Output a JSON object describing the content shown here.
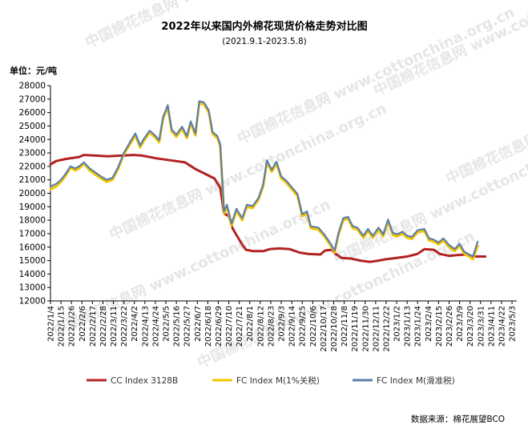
{
  "chart_data": {
    "type": "line",
    "title": "2022年以来国内外棉花现货价格走势对比图",
    "subtitle": "(2021.9.1-2023.5.8)",
    "unit_label": "单位：元/吨",
    "source": "数据来源：棉花展望BCO",
    "watermark": "中国棉花信息网 www.cottonchina.org.cn",
    "ylim": [
      12000,
      28000
    ],
    "ytick_step": 1000,
    "y_ticks": [
      "12000",
      "13000",
      "14000",
      "15000",
      "16000",
      "17000",
      "18000",
      "19000",
      "20000",
      "21000",
      "22000",
      "23000",
      "24000",
      "25000",
      "26000",
      "27000",
      "28000"
    ],
    "x_ticks": [
      "2022/1/4",
      "2022/1/15",
      "2022/1/26",
      "2022/2/6",
      "2022/2/17",
      "2022/2/28",
      "2022/3/11",
      "2022/3/22",
      "2022/4/2",
      "2022/4/13",
      "2022/4/24",
      "2022/5/5",
      "2022/5/16",
      "2022/5/27",
      "2022/6/7",
      "2022/6/18",
      "2022/6/29",
      "2022/7/10",
      "2022/7/21",
      "2022/8/1",
      "2022/8/12",
      "2022/8/23",
      "2022/9/3",
      "2022/9/14",
      "2022/9/25",
      "2022/10/6",
      "2022/10/17",
      "2022/10/28",
      "2022/11/8",
      "2022/11/19",
      "2022/11/30",
      "2022/12/11",
      "2022/12/22",
      "2023/1/2",
      "2023/1/13",
      "2023/1/24",
      "2023/2/4",
      "2023/2/15",
      "2023/2/26",
      "2023/3/9",
      "2023/3/20",
      "2023/3/31",
      "2023/4/11",
      "2023/4/22",
      "2023/5/3"
    ],
    "x_range": [
      "2022-01-04",
      "2023-05-08"
    ],
    "grid": false,
    "legend_position": "bottom",
    "series": [
      {
        "name": "CC Index 3128B",
        "color": "#b22222",
        "points": [
          [
            "2022-01-04",
            22150
          ],
          [
            "2022-01-10",
            22400
          ],
          [
            "2022-01-20",
            22550
          ],
          [
            "2022-01-30",
            22650
          ],
          [
            "2022-02-03",
            22700
          ],
          [
            "2022-02-08",
            22850
          ],
          [
            "2022-02-20",
            22800
          ],
          [
            "2022-03-05",
            22750
          ],
          [
            "2022-03-20",
            22800
          ],
          [
            "2022-04-01",
            22850
          ],
          [
            "2022-04-10",
            22800
          ],
          [
            "2022-04-25",
            22600
          ],
          [
            "2022-05-10",
            22450
          ],
          [
            "2022-05-25",
            22300
          ],
          [
            "2022-06-05",
            21800
          ],
          [
            "2022-06-15",
            21450
          ],
          [
            "2022-06-25",
            21100
          ],
          [
            "2022-07-01",
            20400
          ],
          [
            "2022-07-05",
            18500
          ],
          [
            "2022-07-10",
            18300
          ],
          [
            "2022-07-14",
            17400
          ],
          [
            "2022-07-18",
            16900
          ],
          [
            "2022-07-24",
            16200
          ],
          [
            "2022-07-28",
            15800
          ],
          [
            "2022-08-05",
            15700
          ],
          [
            "2022-08-15",
            15700
          ],
          [
            "2022-08-22",
            15850
          ],
          [
            "2022-09-01",
            15900
          ],
          [
            "2022-09-12",
            15850
          ],
          [
            "2022-09-22",
            15600
          ],
          [
            "2022-10-01",
            15500
          ],
          [
            "2022-10-14",
            15450
          ],
          [
            "2022-10-19",
            15750
          ],
          [
            "2022-10-26",
            15800
          ],
          [
            "2022-10-30",
            15500
          ],
          [
            "2022-11-05",
            15200
          ],
          [
            "2022-11-15",
            15150
          ],
          [
            "2022-11-25",
            15000
          ],
          [
            "2022-12-05",
            14900
          ],
          [
            "2022-12-14",
            15000
          ],
          [
            "2022-12-22",
            15100
          ],
          [
            "2023-01-02",
            15200
          ],
          [
            "2023-01-13",
            15300
          ],
          [
            "2023-01-24",
            15500
          ],
          [
            "2023-01-31",
            15850
          ],
          [
            "2023-02-10",
            15800
          ],
          [
            "2023-02-16",
            15500
          ],
          [
            "2023-02-26",
            15350
          ],
          [
            "2023-03-06",
            15400
          ],
          [
            "2023-03-15",
            15450
          ],
          [
            "2023-03-24",
            15300
          ],
          [
            "2023-04-05",
            15300
          ]
        ]
      },
      {
        "name": "FC Index M(1%关税)",
        "color": "#f5c400",
        "points": [
          [
            "2022-01-04",
            20300
          ],
          [
            "2022-01-10",
            20500
          ],
          [
            "2022-01-15",
            20850
          ],
          [
            "2022-01-20",
            21300
          ],
          [
            "2022-01-25",
            21900
          ],
          [
            "2022-01-30",
            21700
          ],
          [
            "2022-02-03",
            21850
          ],
          [
            "2022-02-08",
            22200
          ],
          [
            "2022-02-14",
            21700
          ],
          [
            "2022-02-20",
            21400
          ],
          [
            "2022-02-26",
            21100
          ],
          [
            "2022-03-04",
            20850
          ],
          [
            "2022-03-10",
            21000
          ],
          [
            "2022-03-16",
            21800
          ],
          [
            "2022-03-22",
            22900
          ],
          [
            "2022-03-28",
            23600
          ],
          [
            "2022-04-03",
            24300
          ],
          [
            "2022-04-08",
            23400
          ],
          [
            "2022-04-12",
            23900
          ],
          [
            "2022-04-18",
            24500
          ],
          [
            "2022-04-23",
            24200
          ],
          [
            "2022-04-28",
            23800
          ],
          [
            "2022-05-02",
            25500
          ],
          [
            "2022-05-07",
            26400
          ],
          [
            "2022-05-11",
            24600
          ],
          [
            "2022-05-16",
            24200
          ],
          [
            "2022-05-22",
            24800
          ],
          [
            "2022-05-27",
            24100
          ],
          [
            "2022-05-31",
            25200
          ],
          [
            "2022-06-05",
            24300
          ],
          [
            "2022-06-09",
            26700
          ],
          [
            "2022-06-14",
            26600
          ],
          [
            "2022-06-19",
            26000
          ],
          [
            "2022-06-23",
            24400
          ],
          [
            "2022-06-28",
            24100
          ],
          [
            "2022-07-01",
            23500
          ],
          [
            "2022-07-05",
            18500
          ],
          [
            "2022-07-08",
            19000
          ],
          [
            "2022-07-13",
            17600
          ],
          [
            "2022-07-18",
            18700
          ],
          [
            "2022-07-24",
            18000
          ],
          [
            "2022-07-29",
            19000
          ],
          [
            "2022-08-04",
            18900
          ],
          [
            "2022-08-10",
            19500
          ],
          [
            "2022-08-15",
            20500
          ],
          [
            "2022-08-19",
            22300
          ],
          [
            "2022-08-24",
            21600
          ],
          [
            "2022-08-29",
            22200
          ],
          [
            "2022-09-03",
            21100
          ],
          [
            "2022-09-08",
            20800
          ],
          [
            "2022-09-14",
            20300
          ],
          [
            "2022-09-20",
            19800
          ],
          [
            "2022-09-25",
            18300
          ],
          [
            "2022-09-30",
            18500
          ],
          [
            "2022-10-04",
            17400
          ],
          [
            "2022-10-12",
            17300
          ],
          [
            "2022-10-18",
            16800
          ],
          [
            "2022-10-24",
            16200
          ],
          [
            "2022-10-29",
            15600
          ],
          [
            "2022-11-02",
            16900
          ],
          [
            "2022-11-07",
            18000
          ],
          [
            "2022-11-12",
            18100
          ],
          [
            "2022-11-17",
            17400
          ],
          [
            "2022-11-22",
            17300
          ],
          [
            "2022-11-28",
            16700
          ],
          [
            "2022-12-03",
            17200
          ],
          [
            "2022-12-08",
            16700
          ],
          [
            "2022-12-14",
            17300
          ],
          [
            "2022-12-19",
            16800
          ],
          [
            "2022-12-24",
            17900
          ],
          [
            "2022-12-29",
            16900
          ],
          [
            "2023-01-03",
            16800
          ],
          [
            "2023-01-08",
            17000
          ],
          [
            "2023-01-13",
            16700
          ],
          [
            "2023-01-18",
            16600
          ],
          [
            "2023-01-24",
            17100
          ],
          [
            "2023-01-31",
            17200
          ],
          [
            "2023-02-05",
            16500
          ],
          [
            "2023-02-10",
            16400
          ],
          [
            "2023-02-15",
            16200
          ],
          [
            "2023-02-20",
            16500
          ],
          [
            "2023-02-26",
            16000
          ],
          [
            "2023-03-04",
            15700
          ],
          [
            "2023-03-09",
            16100
          ],
          [
            "2023-03-14",
            15500
          ],
          [
            "2023-03-19",
            15300
          ],
          [
            "2023-03-23",
            15100
          ],
          [
            "2023-03-28",
            16100
          ]
        ]
      },
      {
        "name": "FC Index M(滑准税)",
        "color": "#5b7fa8",
        "points": [
          [
            "2022-01-04",
            20500
          ],
          [
            "2022-01-10",
            20700
          ],
          [
            "2022-01-15",
            21000
          ],
          [
            "2022-01-20",
            21450
          ],
          [
            "2022-01-25",
            22000
          ],
          [
            "2022-01-30",
            21850
          ],
          [
            "2022-02-03",
            22000
          ],
          [
            "2022-02-08",
            22300
          ],
          [
            "2022-02-14",
            21850
          ],
          [
            "2022-02-20",
            21550
          ],
          [
            "2022-02-26",
            21250
          ],
          [
            "2022-03-04",
            21000
          ],
          [
            "2022-03-10",
            21150
          ],
          [
            "2022-03-16",
            21950
          ],
          [
            "2022-03-22",
            23000
          ],
          [
            "2022-03-28",
            23750
          ],
          [
            "2022-04-03",
            24450
          ],
          [
            "2022-04-08",
            23550
          ],
          [
            "2022-04-12",
            24050
          ],
          [
            "2022-04-18",
            24650
          ],
          [
            "2022-04-23",
            24350
          ],
          [
            "2022-04-28",
            23950
          ],
          [
            "2022-05-02",
            25650
          ],
          [
            "2022-05-07",
            26550
          ],
          [
            "2022-05-11",
            24750
          ],
          [
            "2022-05-16",
            24350
          ],
          [
            "2022-05-22",
            24950
          ],
          [
            "2022-05-27",
            24250
          ],
          [
            "2022-05-31",
            25350
          ],
          [
            "2022-06-05",
            24450
          ],
          [
            "2022-06-09",
            26850
          ],
          [
            "2022-06-14",
            26750
          ],
          [
            "2022-06-19",
            26150
          ],
          [
            "2022-06-23",
            24550
          ],
          [
            "2022-06-28",
            24250
          ],
          [
            "2022-07-01",
            23650
          ],
          [
            "2022-07-05",
            18650
          ],
          [
            "2022-07-08",
            19150
          ],
          [
            "2022-07-13",
            17750
          ],
          [
            "2022-07-18",
            18850
          ],
          [
            "2022-07-24",
            18150
          ],
          [
            "2022-07-29",
            19150
          ],
          [
            "2022-08-04",
            19050
          ],
          [
            "2022-08-10",
            19650
          ],
          [
            "2022-08-15",
            20650
          ],
          [
            "2022-08-19",
            22450
          ],
          [
            "2022-08-24",
            21750
          ],
          [
            "2022-08-29",
            22350
          ],
          [
            "2022-09-03",
            21250
          ],
          [
            "2022-09-08",
            20950
          ],
          [
            "2022-09-14",
            20450
          ],
          [
            "2022-09-20",
            19950
          ],
          [
            "2022-09-25",
            18450
          ],
          [
            "2022-09-30",
            18650
          ],
          [
            "2022-10-04",
            17550
          ],
          [
            "2022-10-12",
            17450
          ],
          [
            "2022-10-18",
            16950
          ],
          [
            "2022-10-24",
            16350
          ],
          [
            "2022-10-29",
            15750
          ],
          [
            "2022-11-02",
            17050
          ],
          [
            "2022-11-07",
            18150
          ],
          [
            "2022-11-12",
            18250
          ],
          [
            "2022-11-17",
            17550
          ],
          [
            "2022-11-22",
            17450
          ],
          [
            "2022-11-28",
            16850
          ],
          [
            "2022-12-03",
            17350
          ],
          [
            "2022-12-08",
            16850
          ],
          [
            "2022-12-14",
            17450
          ],
          [
            "2022-12-19",
            16950
          ],
          [
            "2022-12-24",
            18050
          ],
          [
            "2022-12-29",
            17050
          ],
          [
            "2023-01-03",
            16950
          ],
          [
            "2023-01-08",
            17150
          ],
          [
            "2023-01-13",
            16850
          ],
          [
            "2023-01-18",
            16750
          ],
          [
            "2023-01-24",
            17250
          ],
          [
            "2023-01-31",
            17350
          ],
          [
            "2023-02-05",
            16650
          ],
          [
            "2023-02-10",
            16550
          ],
          [
            "2023-02-15",
            16350
          ],
          [
            "2023-02-20",
            16650
          ],
          [
            "2023-02-26",
            16150
          ],
          [
            "2023-03-04",
            15850
          ],
          [
            "2023-03-09",
            16250
          ],
          [
            "2023-03-14",
            15650
          ],
          [
            "2023-03-19",
            15450
          ],
          [
            "2023-03-23",
            15300
          ],
          [
            "2023-03-28",
            16400
          ]
        ]
      }
    ]
  }
}
